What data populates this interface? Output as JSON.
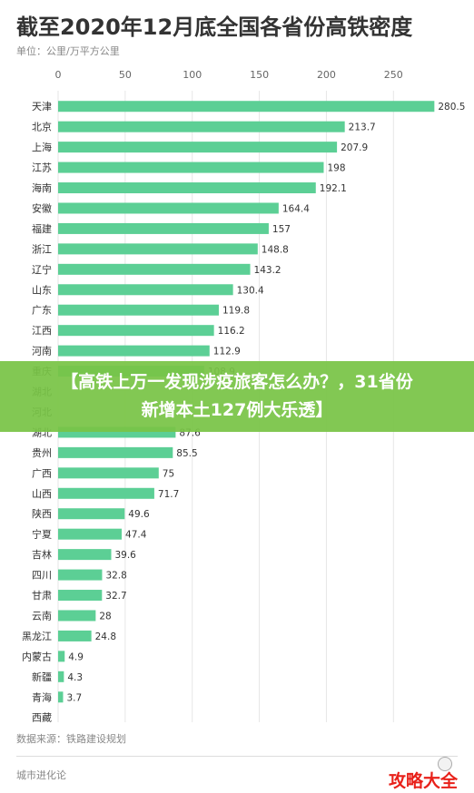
{
  "header": {
    "title": "截至2020年12月底全国各省份高铁密度",
    "unit": "单位：公里/万平方公里"
  },
  "chart_data": {
    "type": "bar",
    "orientation": "horizontal",
    "title": "截至2020年12月底全国各省份高铁密度",
    "xlim": [
      0,
      285
    ],
    "xticks": [
      0,
      50,
      100,
      150,
      200,
      250
    ],
    "grid": true,
    "color": "#5ccf95",
    "categories": [
      "天津",
      "北京",
      "上海",
      "江苏",
      "海南",
      "安徽",
      "福建",
      "浙江",
      "辽宁",
      "山东",
      "广东",
      "江西",
      "河南",
      "重庆",
      "湖北",
      "河北",
      "湖北",
      "贵州",
      "广西",
      "山西",
      "陕西",
      "宁夏",
      "吉林",
      "四川",
      "甘肃",
      "云南",
      "黑龙江",
      "内蒙古",
      "新疆",
      "青海",
      "西藏"
    ],
    "values": [
      280.5,
      213.7,
      207.9,
      198,
      192.1,
      164.4,
      157,
      148.8,
      143.2,
      130.4,
      119.8,
      116.2,
      112.9,
      108.9,
      null,
      null,
      87.6,
      85.5,
      75,
      71.7,
      49.6,
      47.4,
      39.6,
      32.8,
      32.7,
      28,
      24.8,
      4.9,
      4.3,
      3.7,
      null
    ],
    "value_labels": [
      "280.5",
      "213.7",
      "207.9",
      "198",
      "192.1",
      "164.4",
      "157",
      "148.8",
      "143.2",
      "130.4",
      "119.8",
      "116.2",
      "112.9",
      "108.9",
      "",
      "",
      "87.6",
      "85.5",
      "75",
      "71.7",
      "49.6",
      "47.4",
      "39.6",
      "32.8",
      "32.7",
      "28",
      "24.8",
      "4.9",
      "4.3",
      "3.7",
      ""
    ]
  },
  "banner": {
    "line1": "【高铁上万一发现涉疫旅客怎么办？，31省份",
    "line2": "新增本土127例大乐透】"
  },
  "footer": {
    "source": "数据来源：铁路建设规划",
    "brand": "城市进化论",
    "watermark": "攻略大全"
  }
}
